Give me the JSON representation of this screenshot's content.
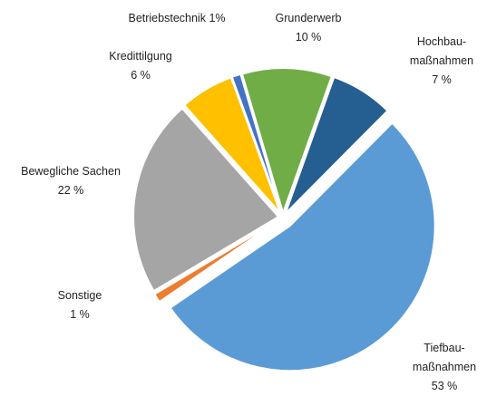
{
  "chart_data": {
    "type": "pie",
    "categories": [
      "Betriebstechnik",
      "Grunderwerb",
      "Hochbau-\nmaßnahmen",
      "Tiefbau-\nmaßnahmen",
      "Sonstige",
      "Bewegliche Sachen",
      "Kredittilgung"
    ],
    "values": [
      1,
      10,
      7,
      53,
      1,
      22,
      6
    ],
    "value_labels": [
      "1%",
      "10 %",
      "7 %",
      "53 %",
      "1 %",
      "22 %",
      "6 %"
    ],
    "colors": [
      "#4472c4",
      "#70ad47",
      "#255e91",
      "#5b9bd5",
      "#ed7d31",
      "#a5a5a5",
      "#ffc000"
    ]
  }
}
